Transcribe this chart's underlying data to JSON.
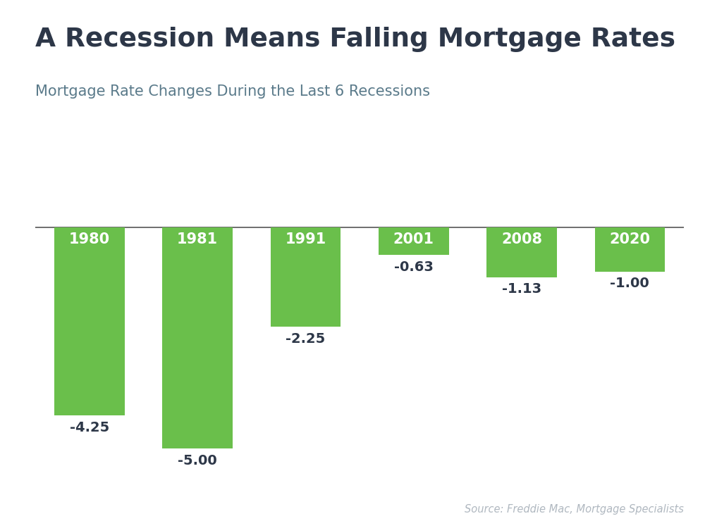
{
  "title": "A Recession Means Falling Mortgage Rates",
  "subtitle": "Mortgage Rate Changes During the Last 6 Recessions",
  "source": "Source: Freddie Mac, Mortgage Specialists",
  "categories": [
    "1980",
    "1981",
    "1991",
    "2001",
    "2008",
    "2020"
  ],
  "values": [
    -4.25,
    -5.0,
    -2.25,
    -0.63,
    -1.13,
    -1.0
  ],
  "bar_color": "#6abf4b",
  "title_color": "#2d3748",
  "subtitle_color": "#5a7a8a",
  "source_color": "#b0b8c0",
  "label_color": "#2d3748",
  "year_label_color": "#ffffff",
  "background_color": "#ffffff",
  "top_strip_color": "#38b2cd",
  "hline_color": "#555555",
  "ylim": [
    -5.6,
    0.6
  ],
  "bar_width": 0.65
}
